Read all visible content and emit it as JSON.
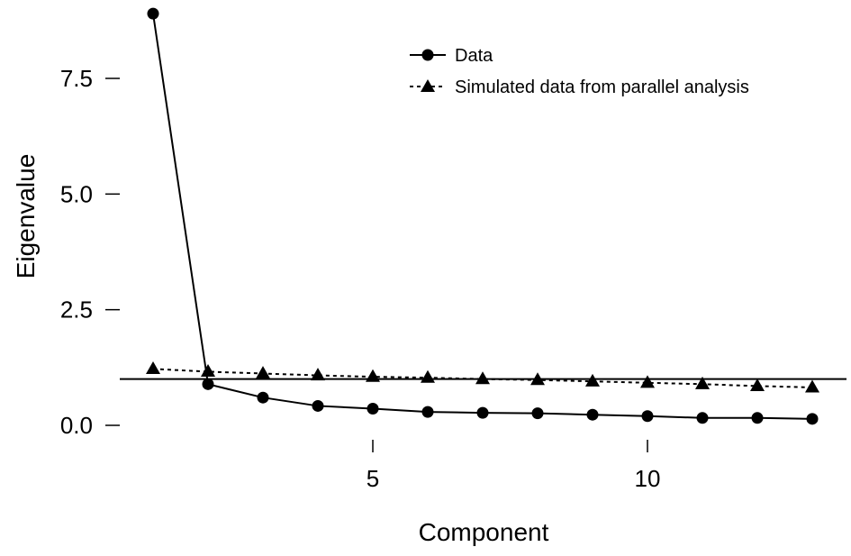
{
  "chart_data": {
    "type": "line",
    "xlabel": "Component",
    "ylabel": "Eigenvalue",
    "x": [
      1,
      2,
      3,
      4,
      5,
      6,
      7,
      8,
      9,
      10,
      11,
      12,
      13
    ],
    "xlim": [
      0,
      13.5
    ],
    "ylim": [
      0,
      9
    ],
    "x_ticks": [
      5,
      10
    ],
    "y_ticks": [
      0.0,
      2.5,
      5.0,
      7.5
    ],
    "y_tick_labels": [
      "0.0",
      "2.5",
      "5.0",
      "7.5"
    ],
    "reference_line_y": 1,
    "grid": false,
    "legend_position": "top-right",
    "series": [
      {
        "name": "Data",
        "marker": "circle",
        "line_style": "solid",
        "color": "#000000",
        "values": [
          8.9,
          0.89,
          0.6,
          0.42,
          0.36,
          0.29,
          0.27,
          0.26,
          0.23,
          0.2,
          0.16,
          0.16,
          0.14
        ]
      },
      {
        "name": "Simulated data from parallel analysis",
        "marker": "triangle",
        "line_style": "dashed",
        "color": "#000000",
        "values": [
          1.22,
          1.16,
          1.12,
          1.08,
          1.05,
          1.03,
          1.0,
          0.98,
          0.95,
          0.92,
          0.89,
          0.85,
          0.82
        ]
      }
    ]
  }
}
